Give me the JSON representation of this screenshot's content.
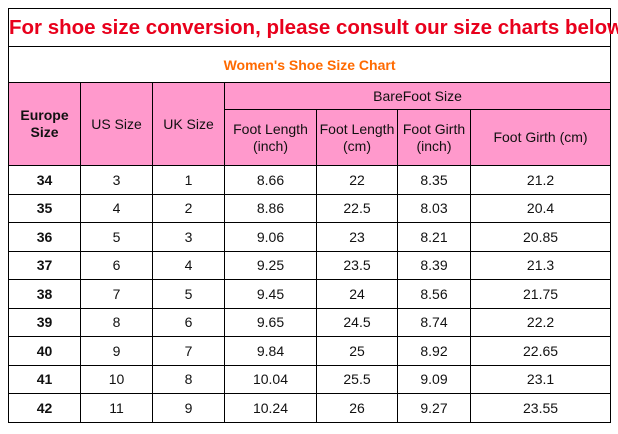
{
  "title": "For shoe size conversion, please consult our size charts below:",
  "subtitle": "Women's Shoe Size Chart",
  "colors": {
    "title": "#e8001c",
    "subtitle": "#ff6a00",
    "header_bg": "#ff99cc"
  },
  "headers": {
    "europe": "Europe Size",
    "us": "US Size",
    "uk": "UK Size",
    "barefoot": "BareFoot Size",
    "foot_length_inch": "Foot Length (inch)",
    "foot_length_cm": "Foot Length (cm)",
    "foot_girth_inch": "Foot Girth (inch)",
    "foot_girth_cm": "Foot Girth (cm)"
  },
  "rows": [
    [
      "34",
      "3",
      "1",
      "8.66",
      "22",
      "8.35",
      "21.2"
    ],
    [
      "35",
      "4",
      "2",
      "8.86",
      "22.5",
      "8.03",
      "20.4"
    ],
    [
      "36",
      "5",
      "3",
      "9.06",
      "23",
      "8.21",
      "20.85"
    ],
    [
      "37",
      "6",
      "4",
      "9.25",
      "23.5",
      "8.39",
      "21.3"
    ],
    [
      "38",
      "7",
      "5",
      "9.45",
      "24",
      "8.56",
      "21.75"
    ],
    [
      "39",
      "8",
      "6",
      "9.65",
      "24.5",
      "8.74",
      "22.2"
    ],
    [
      "40",
      "9",
      "7",
      "9.84",
      "25",
      "8.92",
      "22.65"
    ],
    [
      "41",
      "10",
      "8",
      "10.04",
      "25.5",
      "9.09",
      "23.1"
    ],
    [
      "42",
      "11",
      "9",
      "10.24",
      "26",
      "9.27",
      "23.55"
    ]
  ]
}
